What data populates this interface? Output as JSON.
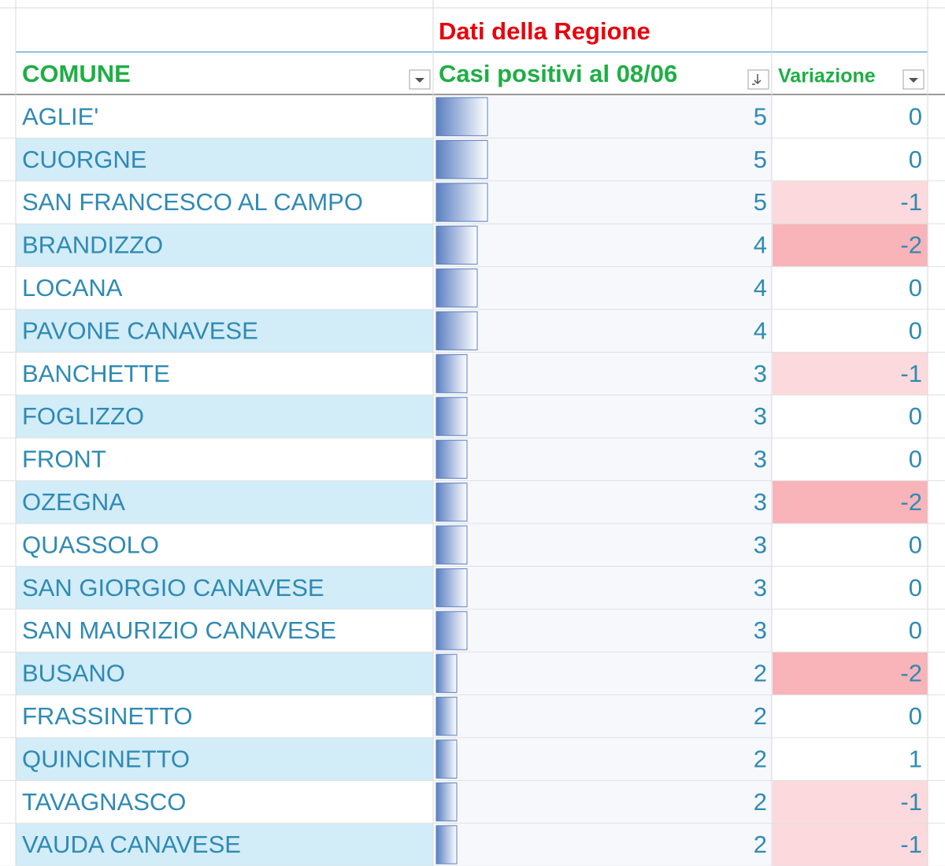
{
  "header": {
    "group_title": "Dati della Regione"
  },
  "table": {
    "columns": [
      "COMUNE",
      "Casi positivi al 08/06",
      "Variazione"
    ],
    "rows": [
      [
        "AGLIE'",
        5,
        0
      ],
      [
        "CUORGNE",
        5,
        0
      ],
      [
        "SAN FRANCESCO AL CAMPO",
        5,
        -1
      ],
      [
        "BRANDIZZO",
        4,
        -2
      ],
      [
        "LOCANA",
        4,
        0
      ],
      [
        "PAVONE CANAVESE",
        4,
        0
      ],
      [
        "BANCHETTE",
        3,
        -1
      ],
      [
        "FOGLIZZO",
        3,
        0
      ],
      [
        "FRONT",
        3,
        0
      ],
      [
        "OZEGNA",
        3,
        -2
      ],
      [
        "QUASSOLO",
        3,
        0
      ],
      [
        "SAN GIORGIO CANAVESE",
        3,
        0
      ],
      [
        "SAN MAURIZIO CANAVESE",
        3,
        0
      ],
      [
        "BUSANO",
        2,
        -2
      ],
      [
        "FRASSINETTO",
        2,
        0
      ],
      [
        "QUINCINETTO",
        2,
        1
      ],
      [
        "TAVAGNASCO",
        2,
        -1
      ],
      [
        "VAUDA CANAVESE",
        2,
        -1
      ]
    ]
  }
}
